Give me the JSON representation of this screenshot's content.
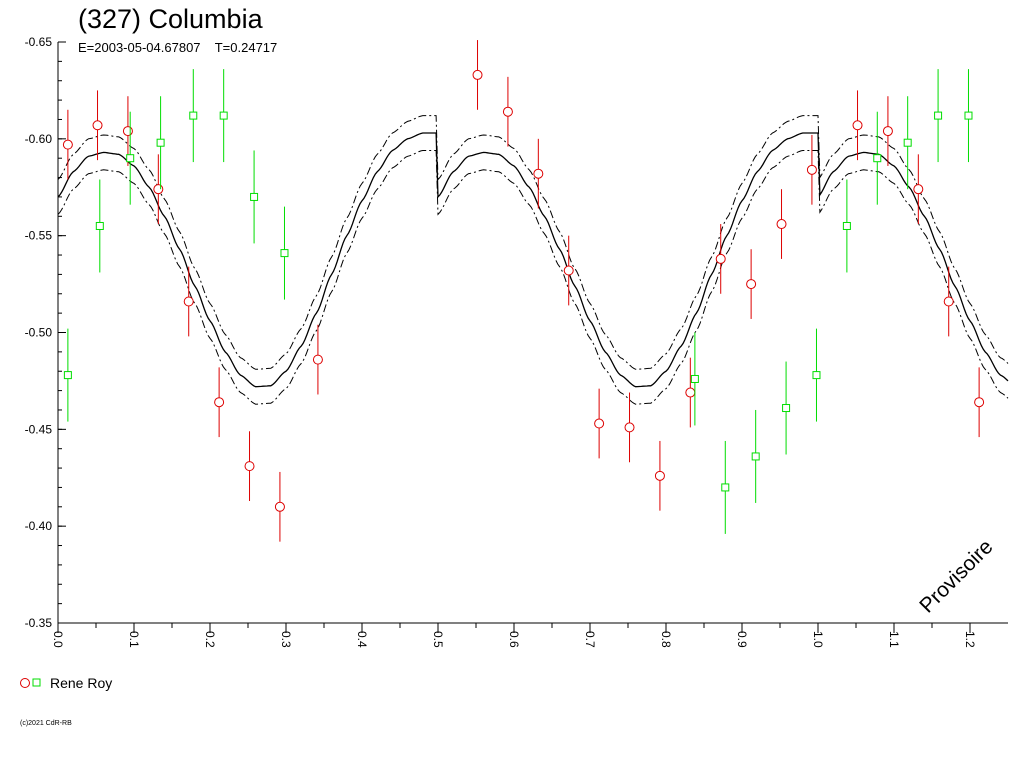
{
  "header": {
    "title": "(327) Columbia",
    "subtitle": "E=2003-05-04.67807    T=0.24717"
  },
  "watermark": "Provisoire",
  "copyright": "(c)2021 CdR-RB",
  "colors": {
    "red": "#dd0000",
    "green": "#00dd00",
    "curve": "#000000"
  },
  "chart_data": {
    "type": "scatter",
    "xlim": [
      0.0,
      1.25
    ],
    "ylim": [
      -0.35,
      -0.65
    ],
    "y_inverted": true,
    "x_ticks": [
      "0.0",
      "0.1",
      "0.2",
      "0.3",
      "0.4",
      "0.5",
      "0.6",
      "0.7",
      "0.8",
      "0.9",
      "1.0",
      "1.1",
      "1.2"
    ],
    "y_ticks": [
      "-0.65",
      "-0.60",
      "-0.55",
      "-0.50",
      "-0.45",
      "-0.40",
      "-0.35"
    ],
    "legend": [
      {
        "label": "Rene Roy",
        "symbols": [
          "circle-red",
          "square-green"
        ]
      }
    ],
    "fit_curve": {
      "period": 0.5,
      "x": [
        0.0,
        0.02,
        0.04,
        0.06,
        0.08,
        0.1,
        0.12,
        0.14,
        0.16,
        0.18,
        0.2,
        0.22,
        0.24,
        0.26,
        0.28,
        0.3,
        0.32,
        0.34,
        0.36,
        0.38,
        0.4,
        0.42,
        0.44,
        0.46,
        0.48,
        0.5
      ],
      "y": [
        -0.57,
        -0.583,
        -0.591,
        -0.593,
        -0.592,
        -0.586,
        -0.575,
        -0.56,
        -0.543,
        -0.524,
        -0.506,
        -0.49,
        -0.478,
        -0.472,
        -0.4725,
        -0.48,
        -0.493,
        -0.51,
        -0.53,
        -0.55,
        -0.568,
        -0.583,
        -0.594,
        -0.6,
        -0.603,
        -0.603
      ],
      "band": 0.009
    },
    "series": [
      {
        "name": "Rene Roy",
        "marker": "circle",
        "color": "#dd0000",
        "x": [
          0.013,
          0.052,
          0.092,
          0.132,
          0.172,
          0.212,
          0.252,
          0.292,
          0.342,
          0.552,
          0.592,
          0.632,
          0.672,
          0.712,
          0.752,
          0.792,
          0.832,
          0.872,
          0.912,
          0.952,
          0.992,
          1.052,
          1.092,
          1.132,
          1.172,
          1.212
        ],
        "y": [
          -0.597,
          -0.607,
          -0.604,
          -0.574,
          -0.516,
          -0.464,
          -0.431,
          -0.41,
          -0.486,
          -0.633,
          -0.614,
          -0.582,
          -0.532,
          -0.453,
          -0.451,
          -0.426,
          -0.469,
          -0.538,
          -0.525,
          -0.556,
          -0.584,
          -0.607,
          -0.604,
          -0.574,
          -0.516,
          -0.464
        ],
        "err": [
          0.018,
          0.018,
          0.018,
          0.018,
          0.018,
          0.018,
          0.018,
          0.018,
          0.018,
          0.018,
          0.018,
          0.018,
          0.018,
          0.018,
          0.018,
          0.018,
          0.018,
          0.018,
          0.018,
          0.018,
          0.018,
          0.018,
          0.018,
          0.018,
          0.018,
          0.018
        ]
      },
      {
        "name": "Rene Roy",
        "marker": "square",
        "color": "#00dd00",
        "x": [
          0.013,
          0.055,
          0.095,
          0.135,
          0.178,
          0.218,
          0.258,
          0.298,
          0.838,
          0.878,
          0.918,
          0.958,
          0.998,
          1.038,
          1.078,
          1.118,
          1.158,
          1.198
        ],
        "y": [
          -0.478,
          -0.555,
          -0.59,
          -0.598,
          -0.612,
          -0.612,
          -0.57,
          -0.541,
          -0.476,
          -0.42,
          -0.436,
          -0.461,
          -0.478,
          -0.555,
          -0.59,
          -0.598,
          -0.612,
          -0.612
        ],
        "err": [
          0.024,
          0.024,
          0.024,
          0.024,
          0.024,
          0.024,
          0.024,
          0.024,
          0.024,
          0.024,
          0.024,
          0.024,
          0.024,
          0.024,
          0.024,
          0.024,
          0.024,
          0.024
        ]
      }
    ]
  }
}
